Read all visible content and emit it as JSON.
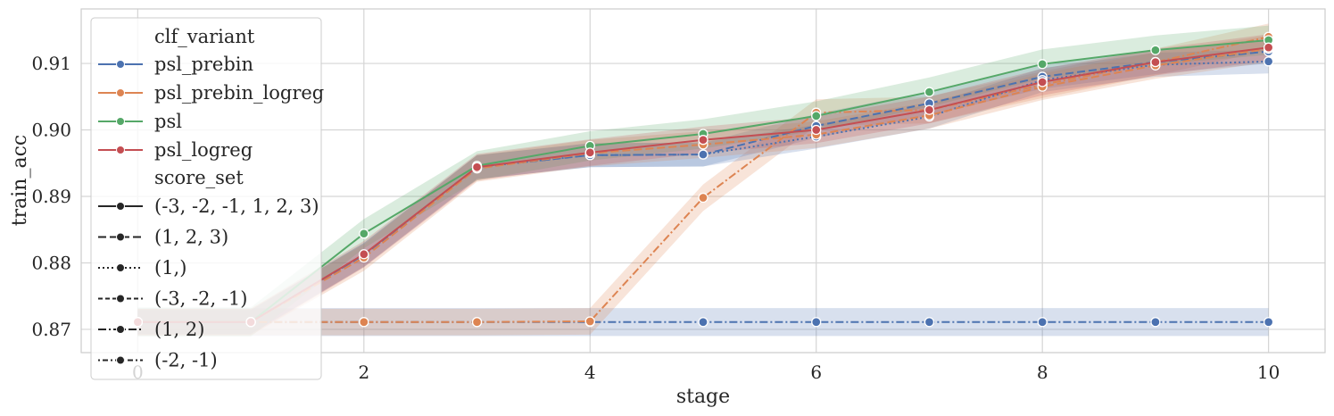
{
  "chart_data": {
    "type": "line",
    "xlabel": "stage",
    "ylabel": "train_acc",
    "xlim": [
      -0.5,
      10.5
    ],
    "ylim": [
      0.8665,
      0.9182
    ],
    "xticks": [
      0,
      2,
      4,
      6,
      8,
      10
    ],
    "xtick_labels": [
      "0",
      "2",
      "4",
      "6",
      "8",
      "10"
    ],
    "yticks": [
      0.87,
      0.88,
      0.89,
      0.9,
      0.91
    ],
    "ytick_labels": [
      "0.87",
      "0.88",
      "0.89",
      "0.90",
      "0.91"
    ],
    "grid": true,
    "legend_placement": "top-left",
    "legend": {
      "hue_title": "clf_variant",
      "hue_entries": [
        {
          "label": "psl_prebin",
          "color": "#4c72b0"
        },
        {
          "label": "psl_prebin_logreg",
          "color": "#dd8452"
        },
        {
          "label": "psl",
          "color": "#55a868"
        },
        {
          "label": "psl_logreg",
          "color": "#c44e52"
        }
      ],
      "style_title": "score_set",
      "style_entries": [
        {
          "label": "(-3, -2, -1, 1, 2, 3)",
          "dash": "solid"
        },
        {
          "label": "(1, 2, 3)",
          "dash": "dashed"
        },
        {
          "label": "(1,)",
          "dash": "dotted"
        },
        {
          "label": "(-3, -2, -1)",
          "dash": "dashed-short"
        },
        {
          "label": "(1, 2)",
          "dash": "dashdot"
        },
        {
          "label": "(-2, -1)",
          "dash": "dotdash"
        }
      ]
    },
    "x": [
      0,
      1,
      2,
      3,
      4,
      5,
      6,
      7,
      8,
      9,
      10
    ],
    "series": [
      {
        "hue": "psl_prebin",
        "style": "(1, 2)",
        "color": "#4c72b0",
        "dash": "dashdot",
        "band": 0.0021,
        "values": [
          0.8711,
          0.8711,
          0.8711,
          0.8711,
          0.8711,
          0.8711,
          0.8711,
          0.8711,
          0.8711,
          0.8711,
          0.8711
        ]
      },
      {
        "hue": "psl_prebin_logreg",
        "style": "(1, 2)",
        "color": "#dd8452",
        "dash": "dashdot",
        "band": 0.002,
        "values": [
          0.8711,
          0.8711,
          0.8711,
          0.8711,
          0.8712,
          0.8898,
          0.9026,
          0.903,
          0.9068,
          0.9102,
          0.914
        ]
      },
      {
        "hue": "psl_prebin",
        "style": "(1, 2, 3)",
        "color": "#4c72b0",
        "dash": "dashed",
        "band": 0.0018,
        "values": [
          0.8711,
          0.8711,
          0.8812,
          0.8944,
          0.8962,
          0.8963,
          0.9006,
          0.904,
          0.908,
          0.9102,
          0.9118
        ]
      },
      {
        "hue": "psl_prebin",
        "style": "(1,)",
        "color": "#4c72b0",
        "dash": "dotted",
        "band": 0.0018,
        "values": [
          0.8711,
          0.8711,
          0.8812,
          0.8944,
          0.8962,
          0.8963,
          0.899,
          0.902,
          0.9075,
          0.9098,
          0.9103
        ]
      },
      {
        "hue": "psl_prebin_logreg",
        "style": "(1, 2, 3)",
        "color": "#dd8452",
        "dash": "dashed",
        "band": 0.002,
        "values": [
          0.8711,
          0.8711,
          0.8808,
          0.8942,
          0.8965,
          0.8978,
          0.8993,
          0.9022,
          0.9065,
          0.9097,
          0.9122
        ]
      },
      {
        "hue": "psl",
        "style": "(-3, -2, -1, 1, 2, 3)",
        "color": "#55a868",
        "dash": "solid",
        "band": 0.0022,
        "values": [
          0.8711,
          0.8711,
          0.8844,
          0.8946,
          0.8976,
          0.8994,
          0.9021,
          0.9057,
          0.9099,
          0.912,
          0.9135
        ]
      },
      {
        "hue": "psl_logreg",
        "style": "(-3, -2, -1, 1, 2, 3)",
        "color": "#c44e52",
        "dash": "solid",
        "band": 0.002,
        "values": [
          0.8711,
          0.8711,
          0.8813,
          0.8944,
          0.8966,
          0.8985,
          0.9,
          0.903,
          0.9072,
          0.9102,
          0.9124
        ]
      }
    ]
  }
}
